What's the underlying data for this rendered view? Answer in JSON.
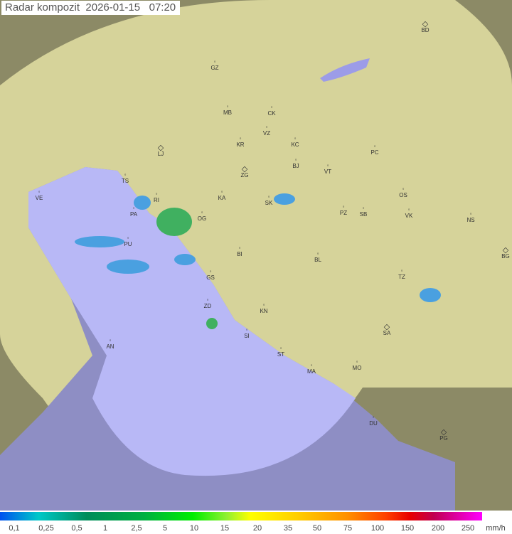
{
  "title": "Radar kompozit  2026-01-15   07:20",
  "legend": {
    "unit": "mm/h",
    "labels": [
      "0,1",
      "0,25",
      "0,5",
      "1",
      "2,5",
      "5",
      "10",
      "15",
      "20",
      "35",
      "50",
      "75",
      "100",
      "150",
      "200",
      "250"
    ]
  },
  "colors": {
    "land": "#d6d39a",
    "sea": "#b8b8f6",
    "outside": "#8c8a66",
    "echo_light": "#4aa0e0",
    "echo_heavy": "#40b060"
  },
  "cities": [
    {
      "code": "BD",
      "capital": true
    },
    {
      "code": "GZ"
    },
    {
      "code": "MB"
    },
    {
      "code": "CK"
    },
    {
      "code": "VZ"
    },
    {
      "code": "KR"
    },
    {
      "code": "KC"
    },
    {
      "code": "PC"
    },
    {
      "code": "LJ",
      "capital": true
    },
    {
      "code": "ZG",
      "capital": true
    },
    {
      "code": "BJ"
    },
    {
      "code": "VT"
    },
    {
      "code": "TS"
    },
    {
      "code": "VE"
    },
    {
      "code": "RI"
    },
    {
      "code": "KA"
    },
    {
      "code": "SK"
    },
    {
      "code": "OS"
    },
    {
      "code": "NS"
    },
    {
      "code": "PA"
    },
    {
      "code": "OG"
    },
    {
      "code": "PZ"
    },
    {
      "code": "SB"
    },
    {
      "code": "VK"
    },
    {
      "code": "PU"
    },
    {
      "code": "BI"
    },
    {
      "code": "BL"
    },
    {
      "code": "BG",
      "capital": true
    },
    {
      "code": "GS"
    },
    {
      "code": "TZ"
    },
    {
      "code": "ZD"
    },
    {
      "code": "KN"
    },
    {
      "code": "SA",
      "capital": true
    },
    {
      "code": "AN"
    },
    {
      "code": "SI"
    },
    {
      "code": "ST"
    },
    {
      "code": "MO"
    },
    {
      "code": "MA"
    },
    {
      "code": "DU"
    },
    {
      "code": "PG",
      "capital": true
    }
  ]
}
